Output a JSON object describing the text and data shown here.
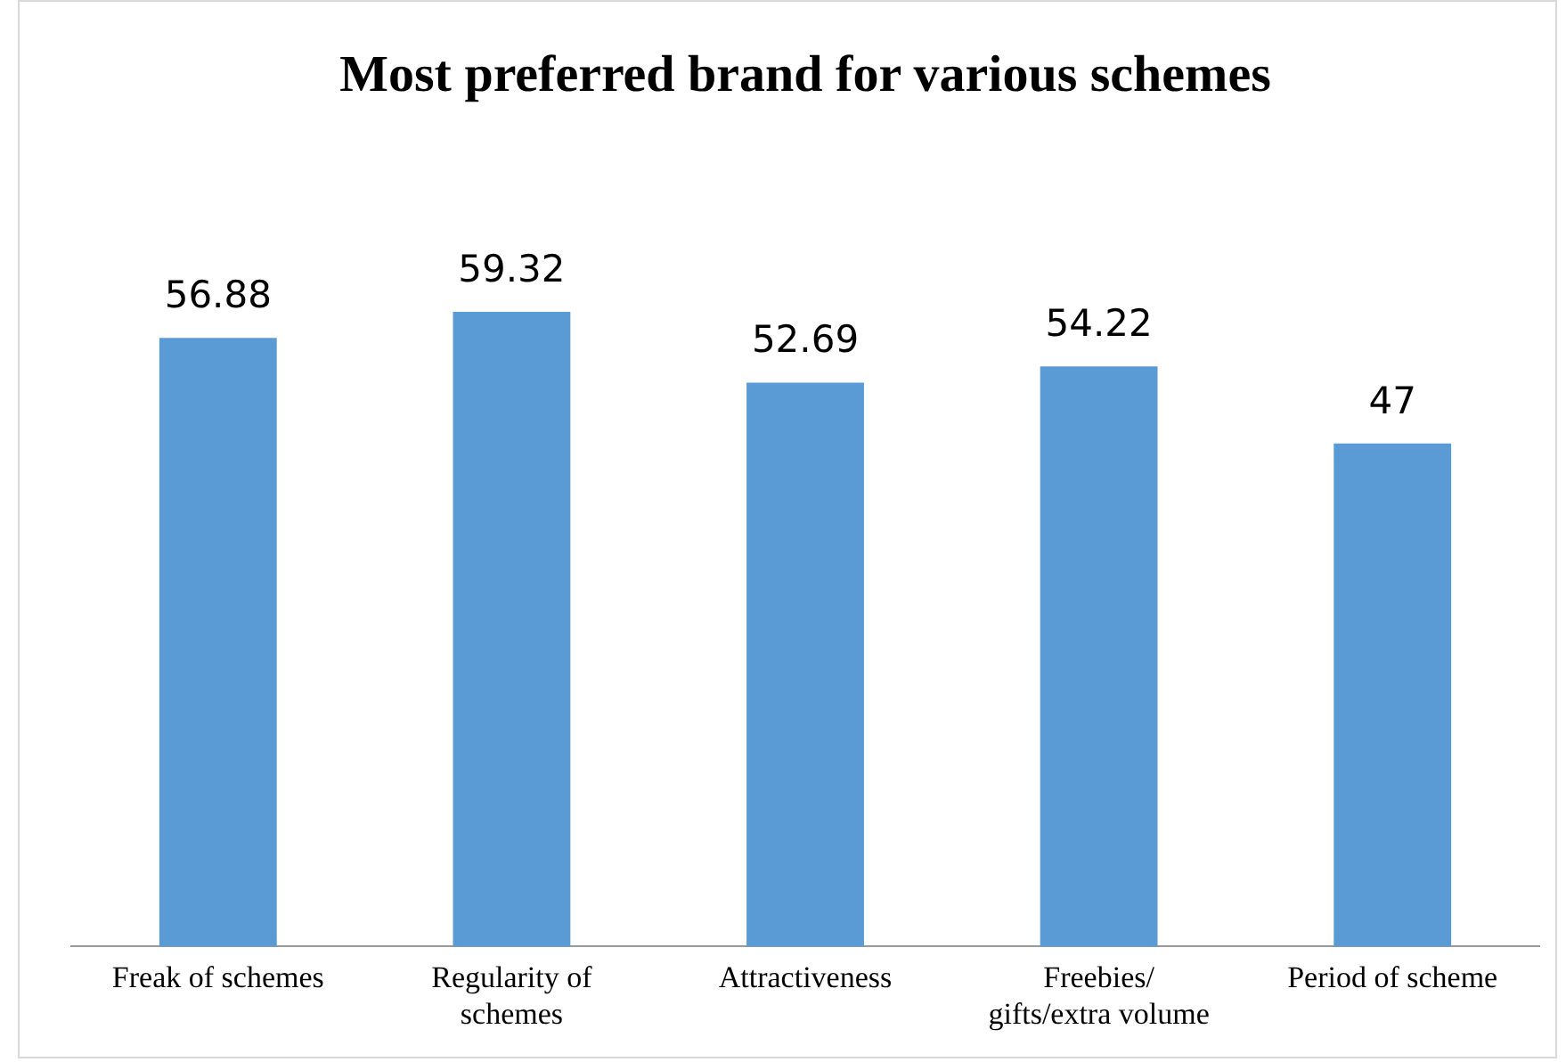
{
  "chart_data": {
    "type": "bar",
    "title": "Most preferred brand for various schemes",
    "categories": [
      "Freak of schemes",
      "Regularity of schemes",
      "Attractiveness",
      "Freebies/ gifts/extra volume",
      "Period of scheme"
    ],
    "values": [
      56.88,
      59.32,
      52.69,
      54.22,
      47
    ],
    "color": "#5b9bd5",
    "data_labels": true,
    "grid": false,
    "legend": false
  }
}
